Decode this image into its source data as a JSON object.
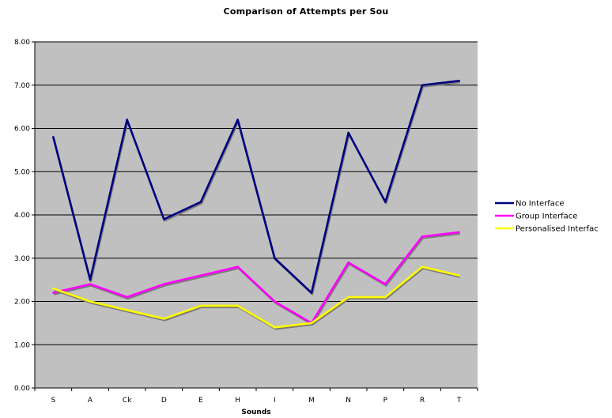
{
  "chart_data": {
    "type": "line",
    "title": "Comparison of Attempts per Sou",
    "xlabel": "Sounds",
    "ylabel": "",
    "categories": [
      "S",
      "A",
      "Ck",
      "D",
      "E",
      "H",
      "I",
      "M",
      "N",
      "P",
      "R",
      "T"
    ],
    "ylim": [
      0,
      8
    ],
    "yticks": [
      "0.00",
      "1.00",
      "2.00",
      "3.00",
      "4.00",
      "5.00",
      "6.00",
      "7.00",
      "8.00"
    ],
    "grid": true,
    "legend_position": "right",
    "plot_background": "#c0c0c0",
    "series": [
      {
        "name": "No Interface",
        "color": "#000080",
        "values": [
          5.8,
          2.5,
          6.2,
          3.9,
          4.3,
          6.2,
          3.0,
          2.2,
          5.9,
          4.3,
          7.0,
          7.1
        ]
      },
      {
        "name": "Group Interface",
        "color": "#ff00ff",
        "values": [
          2.2,
          2.4,
          2.1,
          2.4,
          2.6,
          2.8,
          2.0,
          1.5,
          2.9,
          2.4,
          3.5,
          3.6
        ]
      },
      {
        "name": "Personalised Interfac",
        "color": "#ffff00",
        "values": [
          2.3,
          2.0,
          1.8,
          1.6,
          1.9,
          1.9,
          1.4,
          1.5,
          2.1,
          2.1,
          2.8,
          2.6
        ]
      }
    ]
  }
}
